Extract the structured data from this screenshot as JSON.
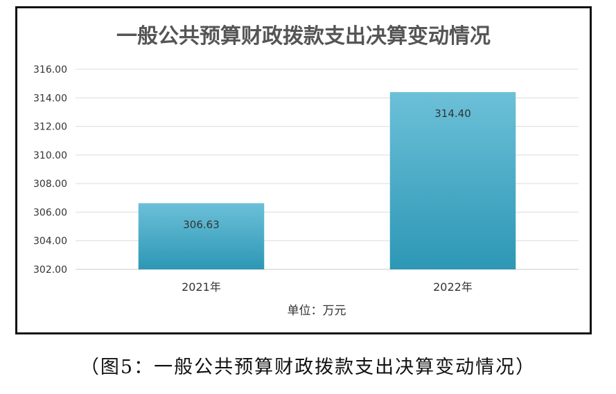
{
  "chart_data": {
    "type": "bar",
    "title": "一般公共预算财政拨款支出决算变动情况",
    "categories": [
      "2021年",
      "2022年"
    ],
    "values": [
      306.63,
      314.4
    ],
    "value_labels": [
      "306.63",
      "314.40"
    ],
    "ylim": [
      302.0,
      316.0
    ],
    "ytick_labels": [
      "302.00",
      "304.00",
      "306.00",
      "308.00",
      "310.00",
      "312.00",
      "314.00",
      "316.00"
    ],
    "xlabel": "单位：万元",
    "ylabel": "",
    "grid": true,
    "legend": "none",
    "bar_color": "#3aaac8"
  },
  "caption": "（图5：一般公共预算财政拨款支出决算变动情况）"
}
